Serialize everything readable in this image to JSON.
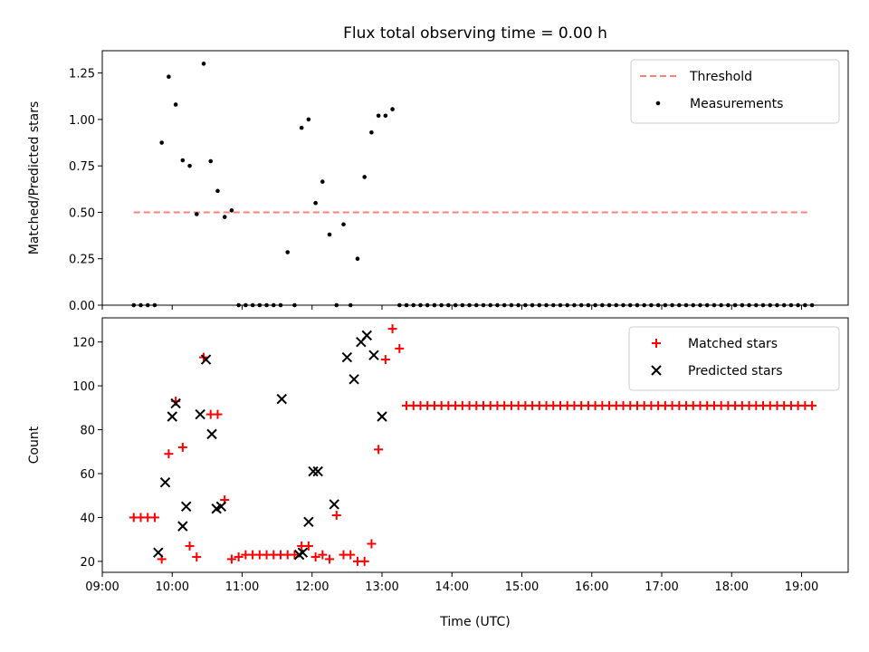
{
  "chart_data": {
    "title": "Flux total observing time = 0.00 h",
    "xlabel": "Time (UTC)",
    "x_tick_labels": [
      "09:00",
      "10:00",
      "11:00",
      "12:00",
      "13:00",
      "14:00",
      "15:00",
      "16:00",
      "17:00",
      "18:00",
      "19:00"
    ],
    "x_range": [
      "09:00",
      "19:40"
    ],
    "colors": {
      "threshold": "#ff7f7f",
      "measurements": "#000000",
      "matched": "#ff0000",
      "predicted": "#000000"
    },
    "panels": [
      {
        "type": "scatter",
        "ylabel": "Matched/Predicted stars",
        "ylim": [
          0,
          1.37
        ],
        "y_tick_labels": [
          "0.00",
          "0.25",
          "0.50",
          "0.75",
          "1.00",
          "1.25"
        ],
        "legend_position": "top-right",
        "threshold": {
          "name": "Threshold",
          "value": 0.5,
          "x_start": "09:27",
          "x_end": "19:06"
        },
        "series": [
          {
            "name": "Measurements",
            "marker": "dot",
            "points": [
              [
                "09:27",
                0
              ],
              [
                "09:33",
                0
              ],
              [
                "09:39",
                0
              ],
              [
                "09:45",
                0
              ],
              [
                "09:51",
                0.875
              ],
              [
                "09:57",
                1.23
              ],
              [
                "10:03",
                1.08
              ],
              [
                "10:09",
                0.78
              ],
              [
                "10:15",
                0.75
              ],
              [
                "10:21",
                0.49
              ],
              [
                "10:27",
                1.3
              ],
              [
                "10:33",
                0.775
              ],
              [
                "10:39",
                0.615
              ],
              [
                "10:45",
                0.475
              ],
              [
                "10:51",
                0.51
              ],
              [
                "10:57",
                0
              ],
              [
                "11:03",
                0
              ],
              [
                "11:09",
                0
              ],
              [
                "11:15",
                0
              ],
              [
                "11:21",
                0
              ],
              [
                "11:27",
                0
              ],
              [
                "11:33",
                0
              ],
              [
                "11:39",
                0.285
              ],
              [
                "11:45",
                0
              ],
              [
                "11:51",
                0.955
              ],
              [
                "11:57",
                1.0
              ],
              [
                "12:03",
                0.55
              ],
              [
                "12:09",
                0.665
              ],
              [
                "12:15",
                0.38
              ],
              [
                "12:21",
                0
              ],
              [
                "12:27",
                0.435
              ],
              [
                "12:33",
                0
              ],
              [
                "12:39",
                0.25
              ],
              [
                "12:45",
                0.69
              ],
              [
                "12:51",
                0.93
              ],
              [
                "12:57",
                1.02
              ],
              [
                "13:03",
                1.02
              ],
              [
                "13:09",
                1.055
              ],
              [
                "13:15",
                0
              ],
              [
                "13:21",
                0
              ],
              [
                "13:27",
                0
              ],
              [
                "13:33",
                0
              ],
              [
                "13:39",
                0
              ],
              [
                "13:45",
                0
              ],
              [
                "13:51",
                0
              ],
              [
                "13:57",
                0
              ],
              [
                "14:03",
                0
              ],
              [
                "14:09",
                0
              ],
              [
                "14:15",
                0
              ],
              [
                "14:21",
                0
              ],
              [
                "14:27",
                0
              ],
              [
                "14:33",
                0
              ],
              [
                "14:39",
                0
              ],
              [
                "14:45",
                0
              ],
              [
                "14:51",
                0
              ],
              [
                "14:57",
                0
              ],
              [
                "15:03",
                0
              ],
              [
                "15:09",
                0
              ],
              [
                "15:15",
                0
              ],
              [
                "15:21",
                0
              ],
              [
                "15:27",
                0
              ],
              [
                "15:33",
                0
              ],
              [
                "15:39",
                0
              ],
              [
                "15:45",
                0
              ],
              [
                "15:51",
                0
              ],
              [
                "15:57",
                0
              ],
              [
                "16:03",
                0
              ],
              [
                "16:09",
                0
              ],
              [
                "16:15",
                0
              ],
              [
                "16:21",
                0
              ],
              [
                "16:27",
                0
              ],
              [
                "16:33",
                0
              ],
              [
                "16:39",
                0
              ],
              [
                "16:45",
                0
              ],
              [
                "16:51",
                0
              ],
              [
                "16:57",
                0
              ],
              [
                "17:03",
                0
              ],
              [
                "17:09",
                0
              ],
              [
                "17:15",
                0
              ],
              [
                "17:21",
                0
              ],
              [
                "17:27",
                0
              ],
              [
                "17:33",
                0
              ],
              [
                "17:39",
                0
              ],
              [
                "17:45",
                0
              ],
              [
                "17:51",
                0
              ],
              [
                "17:57",
                0
              ],
              [
                "18:03",
                0
              ],
              [
                "18:09",
                0
              ],
              [
                "18:15",
                0
              ],
              [
                "18:21",
                0
              ],
              [
                "18:27",
                0
              ],
              [
                "18:33",
                0
              ],
              [
                "18:39",
                0
              ],
              [
                "18:45",
                0
              ],
              [
                "18:51",
                0
              ],
              [
                "18:57",
                0
              ],
              [
                "19:03",
                0
              ],
              [
                "19:09",
                0
              ]
            ]
          }
        ]
      },
      {
        "type": "scatter",
        "ylabel": "Count",
        "ylim": [
          15,
          131
        ],
        "y_tick_labels": [
          "20",
          "40",
          "60",
          "80",
          "100",
          "120"
        ],
        "legend_position": "top-right",
        "series": [
          {
            "name": "Matched stars",
            "marker": "plus",
            "points": [
              [
                "09:27",
                40
              ],
              [
                "09:33",
                40
              ],
              [
                "09:39",
                40
              ],
              [
                "09:45",
                40
              ],
              [
                "09:51",
                21
              ],
              [
                "09:57",
                69
              ],
              [
                "10:03",
                93
              ],
              [
                "10:09",
                72
              ],
              [
                "10:15",
                27
              ],
              [
                "10:21",
                22
              ],
              [
                "10:27",
                113
              ],
              [
                "10:33",
                87
              ],
              [
                "10:39",
                87
              ],
              [
                "10:45",
                48
              ],
              [
                "10:51",
                21
              ],
              [
                "10:57",
                22
              ],
              [
                "11:03",
                23
              ],
              [
                "11:09",
                23
              ],
              [
                "11:15",
                23
              ],
              [
                "11:21",
                23
              ],
              [
                "11:27",
                23
              ],
              [
                "11:33",
                23
              ],
              [
                "11:39",
                23
              ],
              [
                "11:45",
                23
              ],
              [
                "11:51",
                27
              ],
              [
                "11:57",
                27
              ],
              [
                "12:03",
                22
              ],
              [
                "12:09",
                23
              ],
              [
                "12:15",
                21
              ],
              [
                "12:21",
                41
              ],
              [
                "12:27",
                23
              ],
              [
                "12:33",
                23
              ],
              [
                "12:39",
                20
              ],
              [
                "12:45",
                20
              ],
              [
                "12:51",
                28
              ],
              [
                "12:57",
                71
              ],
              [
                "13:03",
                112
              ],
              [
                "13:09",
                126
              ],
              [
                "13:15",
                117
              ],
              [
                "13:21",
                91
              ],
              [
                "13:27",
                91
              ],
              [
                "13:33",
                91
              ],
              [
                "13:39",
                91
              ],
              [
                "13:45",
                91
              ],
              [
                "13:51",
                91
              ],
              [
                "13:57",
                91
              ],
              [
                "14:03",
                91
              ],
              [
                "14:09",
                91
              ],
              [
                "14:15",
                91
              ],
              [
                "14:21",
                91
              ],
              [
                "14:27",
                91
              ],
              [
                "14:33",
                91
              ],
              [
                "14:39",
                91
              ],
              [
                "14:45",
                91
              ],
              [
                "14:51",
                91
              ],
              [
                "14:57",
                91
              ],
              [
                "15:03",
                91
              ],
              [
                "15:09",
                91
              ],
              [
                "15:15",
                91
              ],
              [
                "15:21",
                91
              ],
              [
                "15:27",
                91
              ],
              [
                "15:33",
                91
              ],
              [
                "15:39",
                91
              ],
              [
                "15:45",
                91
              ],
              [
                "15:51",
                91
              ],
              [
                "15:57",
                91
              ],
              [
                "16:03",
                91
              ],
              [
                "16:09",
                91
              ],
              [
                "16:15",
                91
              ],
              [
                "16:21",
                91
              ],
              [
                "16:27",
                91
              ],
              [
                "16:33",
                91
              ],
              [
                "16:39",
                91
              ],
              [
                "16:45",
                91
              ],
              [
                "16:51",
                91
              ],
              [
                "16:57",
                91
              ],
              [
                "17:03",
                91
              ],
              [
                "17:09",
                91
              ],
              [
                "17:15",
                91
              ],
              [
                "17:21",
                91
              ],
              [
                "17:27",
                91
              ],
              [
                "17:33",
                91
              ],
              [
                "17:39",
                91
              ],
              [
                "17:45",
                91
              ],
              [
                "17:51",
                91
              ],
              [
                "17:57",
                91
              ],
              [
                "18:03",
                91
              ],
              [
                "18:09",
                91
              ],
              [
                "18:15",
                91
              ],
              [
                "18:21",
                91
              ],
              [
                "18:27",
                91
              ],
              [
                "18:33",
                91
              ],
              [
                "18:39",
                91
              ],
              [
                "18:45",
                91
              ],
              [
                "18:51",
                91
              ],
              [
                "18:57",
                91
              ],
              [
                "19:03",
                91
              ],
              [
                "19:09",
                91
              ]
            ]
          },
          {
            "name": "Predicted stars",
            "marker": "x",
            "points": [
              [
                "09:48",
                24
              ],
              [
                "09:54",
                56
              ],
              [
                "10:00",
                86
              ],
              [
                "10:03",
                92
              ],
              [
                "10:09",
                36
              ],
              [
                "10:12",
                45
              ],
              [
                "10:24",
                87
              ],
              [
                "10:29",
                112
              ],
              [
                "10:34",
                78
              ],
              [
                "10:38",
                44
              ],
              [
                "10:42",
                45
              ],
              [
                "11:34",
                94
              ],
              [
                "11:49",
                23
              ],
              [
                "11:52",
                24
              ],
              [
                "11:57",
                38
              ],
              [
                "12:01",
                61
              ],
              [
                "12:05",
                61
              ],
              [
                "12:19",
                46
              ],
              [
                "12:30",
                113
              ],
              [
                "12:36",
                103
              ],
              [
                "12:42",
                120
              ],
              [
                "12:47",
                123
              ],
              [
                "12:53",
                114
              ],
              [
                "13:00",
                86
              ]
            ]
          }
        ]
      }
    ]
  }
}
